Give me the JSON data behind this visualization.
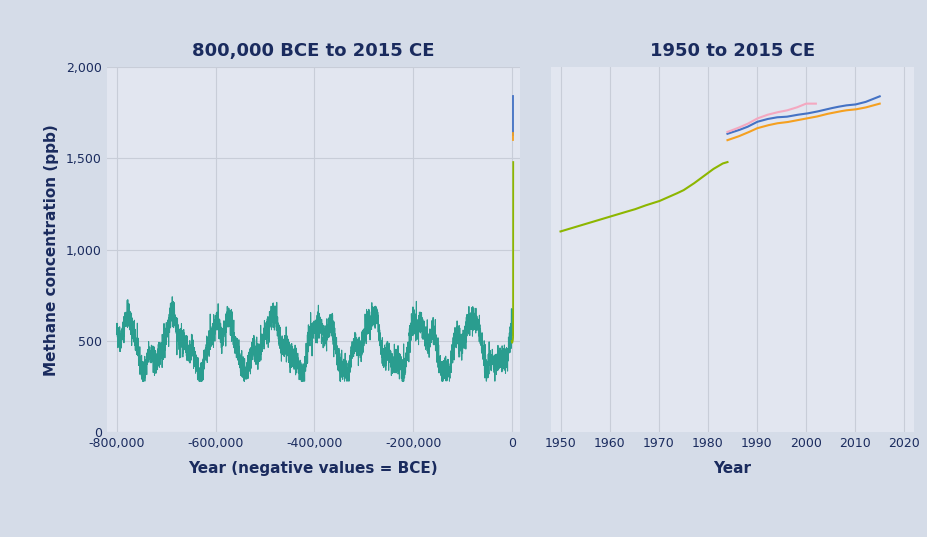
{
  "title_left": "800,000 BCE to 2015 CE",
  "title_right": "1950 to 2015 CE",
  "ylabel": "Methane concentration (ppb)",
  "xlabel_left": "Year (negative values = BCE)",
  "xlabel_right": "Year",
  "fig_bg_color": "#d5dce8",
  "plot_bg_color": "#e2e6f0",
  "title_color": "#1a2b5e",
  "label_color": "#1a2b5e",
  "tick_color": "#1a2b5e",
  "grid_color": "#c8cdd8",
  "teal_color": "#2a9d8f",
  "green_color": "#8db600",
  "blue_color": "#4472c4",
  "orange_color": "#f5a020",
  "pink_color": "#f4a8c0",
  "ylim": [
    0,
    2000
  ],
  "yticks": [
    0,
    500,
    1000,
    1500,
    2000
  ],
  "left_xlim": [
    -820000,
    15000
  ],
  "right_xlim": [
    1948,
    2022
  ],
  "right_xticks": [
    1950,
    1960,
    1970,
    1980,
    1990,
    2000,
    2010,
    2020
  ],
  "left_xticks": [
    -800000,
    -600000,
    -400000,
    -200000,
    0
  ]
}
